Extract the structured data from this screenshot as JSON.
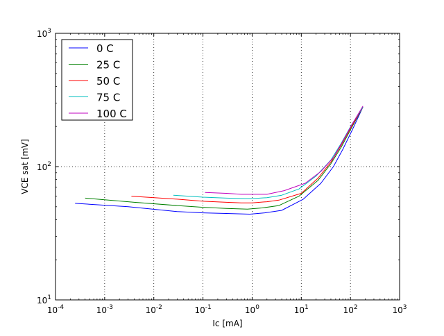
{
  "chart_data": {
    "type": "line",
    "title": "",
    "xlabel": "Ic [mA]",
    "ylabel": "VCE sat [mV]",
    "x_scale": "log",
    "y_scale": "log",
    "xlim": [
      0.0001,
      1000
    ],
    "ylim": [
      10,
      1000
    ],
    "x_ticks": [
      {
        "base": "10",
        "exp": "-4",
        "value": 0.0001
      },
      {
        "base": "10",
        "exp": "-3",
        "value": 0.001
      },
      {
        "base": "10",
        "exp": "-2",
        "value": 0.01
      },
      {
        "base": "10",
        "exp": "-1",
        "value": 0.1
      },
      {
        "base": "10",
        "exp": "0",
        "value": 1
      },
      {
        "base": "10",
        "exp": "1",
        "value": 10
      },
      {
        "base": "10",
        "exp": "2",
        "value": 100
      },
      {
        "base": "10",
        "exp": "3",
        "value": 1000
      }
    ],
    "y_ticks": [
      {
        "base": "10",
        "exp": "1",
        "value": 10
      },
      {
        "base": "10",
        "exp": "2",
        "value": 100
      },
      {
        "base": "10",
        "exp": "3",
        "value": 1000
      }
    ],
    "grid": true,
    "legend_position": "top-left",
    "series": [
      {
        "name": "0 C",
        "color": "#0000ff",
        "x": [
          0.00025,
          0.003,
          0.03,
          0.1,
          0.3,
          0.9,
          1.8,
          4,
          11,
          25,
          45,
          70,
          110,
          180
        ],
        "y": [
          53,
          50,
          46,
          45,
          44.5,
          44,
          45,
          47,
          57,
          75,
          100,
          135,
          190,
          280
        ]
      },
      {
        "name": "25 C",
        "color": "#008000",
        "x": [
          0.0004,
          0.004,
          0.03,
          0.1,
          0.3,
          0.8,
          1.6,
          3.5,
          9,
          22,
          40,
          65,
          105,
          180
        ],
        "y": [
          58,
          54,
          51,
          49.5,
          48.5,
          48,
          49,
          51,
          60,
          79,
          105,
          140,
          195,
          280
        ]
      },
      {
        "name": "50 C",
        "color": "#ff0000",
        "x": [
          0.0035,
          0.03,
          0.1,
          0.3,
          0.6,
          1.0,
          2.0,
          3.5,
          10,
          22,
          40,
          65,
          105,
          180
        ],
        "y": [
          60,
          57,
          55,
          54,
          53.5,
          53.5,
          54.5,
          56,
          63,
          82,
          108,
          145,
          200,
          280
        ]
      },
      {
        "name": "75 C",
        "color": "#00bfbf",
        "x": [
          0.025,
          0.1,
          0.3,
          0.7,
          1.0,
          2.0,
          4.0,
          9,
          20,
          40,
          65,
          105,
          180
        ],
        "y": [
          61,
          59,
          58,
          57.5,
          57.5,
          58.5,
          61,
          68,
          85,
          112,
          150,
          205,
          280
        ]
      },
      {
        "name": "100 C",
        "color": "#bf00bf",
        "x": [
          0.11,
          0.3,
          0.6,
          1.0,
          2.0,
          4.5,
          12,
          25,
          45,
          70,
          110,
          180
        ],
        "y": [
          64,
          63,
          62,
          62,
          62,
          66,
          75,
          92,
          117,
          155,
          210,
          285
        ]
      }
    ]
  }
}
